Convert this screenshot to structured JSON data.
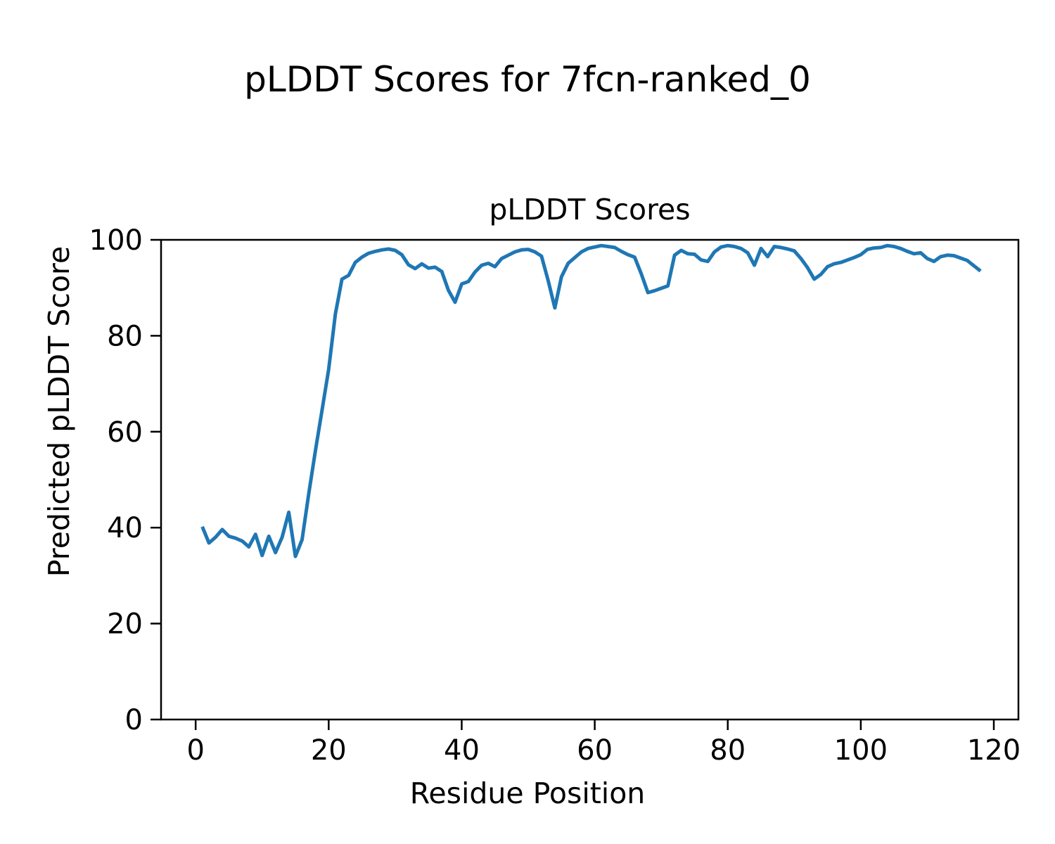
{
  "figure": {
    "suptitle": "pLDDT Scores for 7fcn-ranked_0"
  },
  "chart_data": {
    "type": "line",
    "title": "pLDDT Scores",
    "xlabel": "Residue Position",
    "ylabel": "Predicted pLDDT Score",
    "line_color": "#1f77b4",
    "axis_color": "#000000",
    "background_color": "#ffffff",
    "grid": false,
    "legend": false,
    "xlim": [
      -5.2,
      123.7
    ],
    "ylim": [
      0,
      100
    ],
    "xticks": [
      0,
      20,
      40,
      60,
      80,
      100,
      120
    ],
    "yticks": [
      0,
      20,
      40,
      60,
      80,
      100
    ],
    "x": [
      1,
      2,
      3,
      4,
      5,
      6,
      7,
      8,
      9,
      10,
      11,
      12,
      13,
      14,
      15,
      16,
      17,
      18,
      19,
      20,
      21,
      22,
      23,
      24,
      25,
      26,
      27,
      28,
      29,
      30,
      31,
      32,
      33,
      34,
      35,
      36,
      37,
      38,
      39,
      40,
      41,
      42,
      43,
      44,
      45,
      46,
      47,
      48,
      49,
      50,
      51,
      52,
      53,
      54,
      55,
      56,
      57,
      58,
      59,
      60,
      61,
      62,
      63,
      64,
      65,
      66,
      67,
      68,
      69,
      70,
      71,
      72,
      73,
      74,
      75,
      76,
      77,
      78,
      79,
      80,
      81,
      82,
      83,
      84,
      85,
      86,
      87,
      88,
      89,
      90,
      91,
      92,
      93,
      94,
      95,
      96,
      97,
      98,
      99,
      100,
      101,
      102,
      103,
      104,
      105,
      106,
      107,
      108,
      109,
      110,
      111,
      112,
      113,
      114,
      115,
      116,
      117,
      118
    ],
    "y": [
      40.2,
      36.8,
      38.0,
      39.6,
      38.2,
      37.8,
      37.2,
      36.0,
      38.6,
      34.2,
      38.2,
      34.8,
      38.0,
      43.2,
      34.0,
      37.5,
      47.0,
      56.0,
      64.5,
      73.0,
      84.5,
      91.8,
      92.6,
      95.3,
      96.4,
      97.2,
      97.6,
      97.9,
      98.1,
      97.8,
      96.9,
      94.8,
      94.0,
      95.0,
      94.1,
      94.3,
      93.4,
      89.5,
      87.0,
      90.8,
      91.3,
      93.3,
      94.7,
      95.1,
      94.4,
      96.1,
      96.8,
      97.5,
      97.9,
      98.0,
      97.5,
      96.6,
      91.5,
      85.8,
      92.3,
      95.1,
      96.3,
      97.5,
      98.2,
      98.5,
      98.8,
      98.6,
      98.4,
      97.6,
      96.9,
      96.4,
      92.9,
      89.0,
      89.4,
      89.9,
      90.4,
      96.8,
      97.8,
      97.1,
      97.0,
      95.8,
      95.5,
      97.5,
      98.5,
      98.8,
      98.6,
      98.2,
      97.3,
      94.7,
      98.2,
      96.5,
      98.6,
      98.4,
      98.1,
      97.7,
      96.1,
      94.2,
      91.8,
      92.8,
      94.4,
      95.0,
      95.3,
      95.8,
      96.3,
      96.9,
      98.0,
      98.3,
      98.4,
      98.8,
      98.6,
      98.2,
      97.6,
      97.1,
      97.3,
      96.1,
      95.5,
      96.5,
      96.8,
      96.7,
      96.2,
      95.7,
      94.6,
      93.5
    ]
  }
}
